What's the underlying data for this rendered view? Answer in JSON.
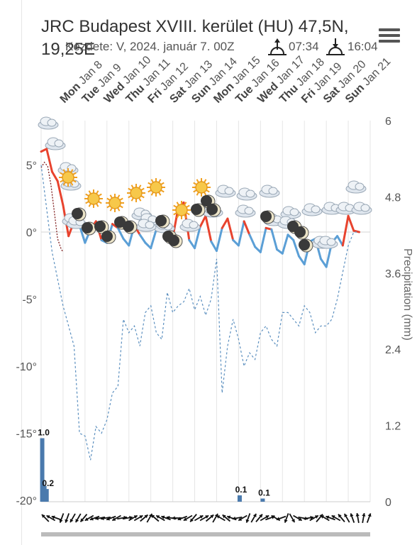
{
  "header": {
    "title": "JRC Budapest XVIII. kerület (HU) 47,5N, 19,25E",
    "subtitle": "Kezdete: V, 2024. január 7. 00Z",
    "sunrise": "07:34",
    "sunset": "16:04"
  },
  "colors": {
    "temperature_line": "#e8432e",
    "temperature_cold_line": "#5b9fd6",
    "dewpoint_line": "#7e1a1a",
    "min_temp_dashed": "#5b8fbf",
    "precip_bar": "#4a7aad",
    "wind_arrow": "#111111",
    "wind_bar": "#bbbbbb",
    "grid": "#e6e6e6"
  },
  "chart_data": {
    "type": "line",
    "title": "JRC Budapest XVIII. kerület (HU) 47,5N, 19,25E",
    "subtitle": "Kezdete: V, 2024. január 7. 00Z",
    "x_day_labels": [
      {
        "dow": "Mon",
        "date": "Jan 8"
      },
      {
        "dow": "Tue",
        "date": "Jan 9"
      },
      {
        "dow": "Wed",
        "date": "Jan 10"
      },
      {
        "dow": "Thu",
        "date": "Jan 11"
      },
      {
        "dow": "Fri",
        "date": "Jan 12"
      },
      {
        "dow": "Sat",
        "date": "Jan 13"
      },
      {
        "dow": "Sun",
        "date": "Jan 14"
      },
      {
        "dow": "Mon",
        "date": "Jan 15"
      },
      {
        "dow": "Tue",
        "date": "Jan 16"
      },
      {
        "dow": "Wed",
        "date": "Jan 17"
      },
      {
        "dow": "Thu",
        "date": "Jan 18"
      },
      {
        "dow": "Fri",
        "date": "Jan 19"
      },
      {
        "dow": "Sat",
        "date": "Jan 20"
      },
      {
        "dow": "Sun",
        "date": "Jan 21"
      }
    ],
    "x_range_days": [
      0,
      15
    ],
    "y_left": {
      "ticks": [
        "5°",
        "0°",
        "-5°",
        "-10°",
        "-15°",
        "-20°"
      ],
      "values": [
        5,
        0,
        -5,
        -10,
        -15,
        -20
      ],
      "range": [
        -20,
        8
      ]
    },
    "y_right": {
      "label": "Precipitation (mm)",
      "ticks": [
        "6",
        "4.8",
        "3.6",
        "2.4",
        "1.2",
        "0"
      ],
      "values": [
        6,
        4.8,
        3.6,
        2.4,
        1.2,
        0
      ],
      "range": [
        0,
        6
      ]
    },
    "series": [
      {
        "name": "",
        "kind": "temperature",
        "x": [
          0.0,
          0.25,
          0.5,
          0.75,
          1.0,
          1.25,
          1.5,
          1.75,
          2.0,
          2.25,
          2.5,
          2.75,
          3.0,
          3.25,
          3.5,
          3.75,
          4.0,
          4.25,
          4.5,
          4.75,
          5.0,
          5.25,
          5.5,
          5.75,
          6.0,
          6.25,
          6.5,
          6.75,
          7.0,
          7.25,
          7.5,
          7.75,
          8.0,
          8.25,
          8.5,
          8.75,
          9.0,
          9.25,
          9.5,
          9.75,
          10.0,
          10.25,
          10.5,
          10.75,
          11.0,
          11.25,
          11.5,
          11.75,
          12.0,
          12.25,
          12.5,
          12.75,
          13.0,
          13.25,
          13.5,
          13.75,
          14.0,
          14.25,
          14.5
        ],
        "values": [
          6.0,
          6.2,
          4.5,
          3.8,
          2.0,
          -0.3,
          0.8,
          0.5,
          -0.8,
          0.2,
          0.8,
          -0.6,
          -0.8,
          0.6,
          0.3,
          -0.5,
          -1.0,
          0.5,
          -0.2,
          -0.8,
          -1.2,
          0.2,
          0.8,
          -0.3,
          -0.4,
          1.8,
          2.2,
          -0.6,
          -1.2,
          0.4,
          1.2,
          -0.7,
          -1.4,
          0.3,
          1.0,
          -0.6,
          -1.0,
          0.8,
          -0.2,
          -1.1,
          -1.5,
          0.3,
          0.2,
          -1.3,
          -1.6,
          -0.2,
          -0.6,
          -1.8,
          -2.4,
          -0.7,
          -0.5,
          -2.0,
          -2.6,
          -0.8,
          -0.3,
          -1.0,
          1.2,
          0.1,
          0.0
        ]
      },
      {
        "name": "",
        "kind": "dewpoint",
        "x": [
          0.0,
          0.15,
          0.3,
          0.45,
          0.6,
          0.75,
          0.9,
          1.0
        ],
        "values": [
          4.8,
          5.2,
          4.9,
          3.5,
          1.5,
          -0.5,
          -1.2,
          -1.5
        ]
      },
      {
        "name": "",
        "kind": "minimum_temperature",
        "x": [
          0.0,
          0.5,
          1.0,
          1.25,
          1.5,
          1.75,
          2.0,
          2.25,
          2.5,
          2.75,
          3.0,
          3.25,
          3.5,
          3.75,
          4.0,
          4.25,
          4.5,
          4.75,
          5.0,
          5.25,
          5.5,
          5.75,
          6.0,
          6.25,
          6.5,
          6.75,
          7.0,
          7.25,
          7.5,
          7.75,
          8.0,
          8.25,
          8.5,
          8.75,
          9.0,
          9.25,
          9.5,
          9.75,
          10.0,
          10.25,
          10.5,
          10.75,
          11.0,
          11.25,
          11.5,
          11.75,
          12.0,
          12.25,
          12.5,
          12.75,
          13.0,
          13.25,
          13.5,
          13.75,
          14.0,
          14.25,
          14.5
        ],
        "values": [
          5.0,
          -1.5,
          -5.5,
          -7.0,
          -8.5,
          -15.0,
          -15.2,
          -17.0,
          -14.5,
          -15.0,
          -14.0,
          -12.0,
          -11.5,
          -6.5,
          -7.5,
          -7.0,
          -8.5,
          -6.0,
          -5.5,
          -7.5,
          -8.0,
          -4.5,
          -6.0,
          -5.5,
          -5.2,
          -4.2,
          -5.8,
          -4.8,
          -6.2,
          -5.0,
          -2.0,
          -12.0,
          -8.5,
          -6.5,
          -8.0,
          -10.0,
          -9.0,
          -9.5,
          -7.5,
          -7.0,
          -8.0,
          -8.5,
          -6.0,
          -6.0,
          -6.5,
          -7.0,
          -5.5,
          -6.0,
          -7.5,
          -7.0,
          -7.0,
          -6.5,
          -5.0,
          -3.0,
          -1.0,
          0.0,
          0.0
        ]
      }
    ],
    "precipitation": {
      "unit": "mm",
      "x": [
        0.05,
        0.15,
        0.25,
        9.05,
        10.1
      ],
      "values": [
        1.0,
        0.25,
        0.2,
        0.1,
        0.05
      ],
      "labels": [
        "1.0",
        "",
        "0.2",
        "0.1",
        "0.1"
      ]
    },
    "wind_directions_deg": [
      315,
      300,
      290,
      200,
      200,
      210,
      210,
      220,
      240,
      250,
      260,
      260,
      250,
      240,
      80,
      80,
      60,
      60,
      50,
      30,
      310,
      300,
      290,
      280,
      270,
      250,
      240,
      220,
      60,
      60,
      50,
      30,
      300,
      310,
      290,
      260,
      240,
      200,
      30,
      40,
      60,
      70,
      300,
      250,
      200,
      150,
      120,
      100,
      80,
      60,
      40,
      300,
      290,
      300,
      320,
      330,
      340,
      350,
      10,
      20
    ]
  }
}
